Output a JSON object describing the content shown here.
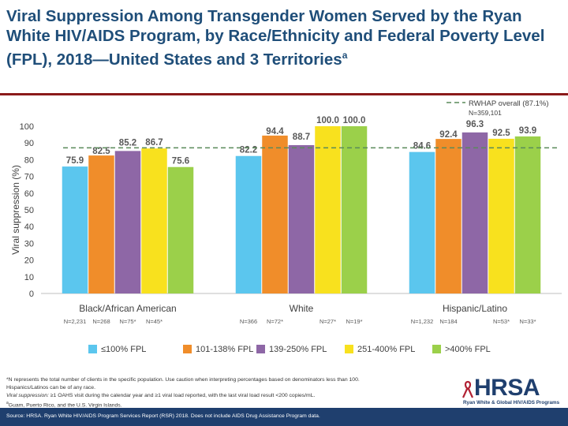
{
  "title": "Viral Suppression Among Transgender Women Served by the Ryan White HIV/AIDS Program, by Race/Ethnicity and Federal Poverty Level (FPL), 2018—United States and 3 Territories",
  "title_superscript": "a",
  "colors": {
    "title": "#1f4e79",
    "rule": "#8b1a1a",
    "footer": "#1f3f6e",
    "reference": "#5a8a5a"
  },
  "chart_data": {
    "type": "bar",
    "ylabel": "Viral suppression (%)",
    "ylim": [
      0,
      100
    ],
    "yticks": [
      0,
      10,
      20,
      30,
      40,
      50,
      60,
      70,
      80,
      90,
      100
    ],
    "categories": [
      "Black/African American",
      "White",
      "Hispanic/Latino"
    ],
    "series": [
      {
        "name": "≤100% FPL",
        "color": "#5bc6ee",
        "values": [
          75.9,
          82.2,
          84.6
        ],
        "labels": [
          "75.9",
          "82.2",
          "84.6"
        ],
        "n": [
          "N=2,231",
          "N=366",
          "N=1,232"
        ]
      },
      {
        "name": "101-138% FPL",
        "color": "#f08d2a",
        "values": [
          82.5,
          94.4,
          92.4
        ],
        "labels": [
          "82.5",
          "94.4",
          "92.4"
        ],
        "n": [
          "N=268",
          "N=72*",
          "N=184"
        ]
      },
      {
        "name": "139-250% FPL",
        "color": "#8e67a6",
        "values": [
          85.2,
          88.7,
          96.3
        ],
        "labels": [
          "85.2",
          "88.7",
          "96.3"
        ],
        "n": [
          "N=75*",
          "",
          ""
        ]
      },
      {
        "name": "251-400% FPL",
        "color": "#f8e11e",
        "values": [
          86.7,
          100.0,
          92.5
        ],
        "labels": [
          "86.7",
          "100.0",
          "92.5"
        ],
        "n": [
          "N=45*",
          "N=27*",
          "N=53*"
        ]
      },
      {
        "name": ">400% FPL",
        "color": "#9bd04a",
        "values": [
          75.6,
          100.0,
          93.9
        ],
        "labels": [
          "75.6",
          "100.0",
          "93.9"
        ],
        "n": [
          "",
          "N=19*",
          "N=33*"
        ]
      }
    ],
    "reference": {
      "label": "RWHAP overall (87.1%)",
      "sublabel": "N=359,101",
      "value": 87.1
    }
  },
  "footnotes": {
    "n_note": "*N represents the total number of clients in the specific population. Use caution when interpreting percentages based on denominators less than 100.",
    "hispanic_note": "Hispanics/Latinos can be of any race.",
    "vs_term": "Viral suppression:",
    "vs_def": " ≥1 OAHS visit during the calendar year and ≥1 viral load reported, with the last viral load result <200 copies/mL.",
    "territories_mark": "a",
    "territories_note": "Guam, Puerto Rico, and the U.S. Virgin Islands."
  },
  "source": "Source: HRSA. Ryan White HIV/AIDS Program Services Report (RSR) 2018. Does not include AIDS Drug Assistance Program data.",
  "logo": {
    "name": "HRSA",
    "subtitle": "Ryan White & Global HIV/AIDS Programs"
  }
}
